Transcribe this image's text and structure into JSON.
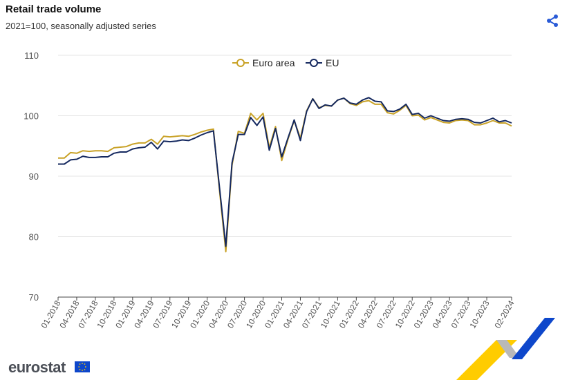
{
  "header": {
    "title": "Retail trade volume",
    "subtitle": "2021=100, seasonally adjusted series"
  },
  "footer": {
    "logo_text": "eurostat"
  },
  "icons": {
    "share": "share-icon",
    "flag": "eu-flag-icon"
  },
  "colors": {
    "euro_area": "#c9a227",
    "eu": "#14285f",
    "share": "#2a5bd7",
    "grid": "#e6e6e6",
    "ribbon_yellow": "#ffcc00",
    "ribbon_blue": "#0e47cb",
    "ribbon_grey": "#b9b9b9"
  },
  "chart_data": {
    "type": "line",
    "title": "Retail trade volume",
    "subtitle": "2021=100, seasonally adjusted series",
    "xlabel": "",
    "ylabel": "",
    "ylim": [
      70,
      110
    ],
    "yticks": [
      70,
      80,
      90,
      100,
      110
    ],
    "grid": true,
    "legend_position": "top-center",
    "x": [
      "01-2018",
      "02-2018",
      "03-2018",
      "04-2018",
      "05-2018",
      "06-2018",
      "07-2018",
      "08-2018",
      "09-2018",
      "10-2018",
      "11-2018",
      "12-2018",
      "01-2019",
      "02-2019",
      "03-2019",
      "04-2019",
      "05-2019",
      "06-2019",
      "07-2019",
      "08-2019",
      "09-2019",
      "10-2019",
      "11-2019",
      "12-2019",
      "01-2020",
      "02-2020",
      "03-2020",
      "04-2020",
      "05-2020",
      "06-2020",
      "07-2020",
      "08-2020",
      "09-2020",
      "10-2020",
      "11-2020",
      "12-2020",
      "01-2021",
      "02-2021",
      "03-2021",
      "04-2021",
      "05-2021",
      "06-2021",
      "07-2021",
      "08-2021",
      "09-2021",
      "10-2021",
      "11-2021",
      "12-2021",
      "01-2022",
      "02-2022",
      "03-2022",
      "04-2022",
      "05-2022",
      "06-2022",
      "07-2022",
      "08-2022",
      "09-2022",
      "10-2022",
      "11-2022",
      "12-2022",
      "01-2023",
      "02-2023",
      "03-2023",
      "04-2023",
      "05-2023",
      "06-2023",
      "07-2023",
      "08-2023",
      "09-2023",
      "10-2023",
      "11-2023",
      "12-2023",
      "01-2024",
      "02-2024"
    ],
    "xtick_labels": [
      "01-2018",
      "04-2018",
      "07-2018",
      "10-2018",
      "01-2019",
      "04-2019",
      "07-2019",
      "10-2019",
      "01-2020",
      "04-2020",
      "07-2020",
      "10-2020",
      "01-2021",
      "04-2021",
      "07-2021",
      "10-2021",
      "01-2022",
      "04-2022",
      "07-2022",
      "10-2022",
      "01-2023",
      "04-2023",
      "07-2023",
      "10-2023",
      "02-2024"
    ],
    "series": [
      {
        "name": "Euro area",
        "values": [
          93.0,
          93.0,
          93.9,
          93.8,
          94.2,
          94.1,
          94.2,
          94.2,
          94.1,
          94.7,
          94.8,
          94.9,
          95.3,
          95.5,
          95.5,
          96.1,
          95.3,
          96.6,
          96.5,
          96.6,
          96.7,
          96.6,
          96.9,
          97.3,
          97.6,
          97.8,
          87.5,
          77.5,
          91.8,
          97.4,
          97.1,
          100.4,
          99.3,
          100.4,
          94.7,
          98.2,
          92.6,
          96.1,
          99.2,
          96.3,
          100.8,
          102.8,
          101.3,
          101.7,
          101.6,
          102.6,
          102.9,
          102.0,
          101.7,
          102.3,
          102.5,
          101.9,
          101.9,
          100.5,
          100.3,
          100.9,
          101.7,
          100.0,
          100.1,
          99.3,
          99.7,
          99.3,
          98.9,
          98.8,
          99.2,
          99.3,
          99.2,
          98.5,
          98.5,
          98.8,
          99.2,
          98.8,
          98.8,
          98.3
        ]
      },
      {
        "name": "EU",
        "values": [
          92.0,
          92.0,
          92.7,
          92.8,
          93.3,
          93.1,
          93.1,
          93.2,
          93.2,
          93.8,
          94.0,
          94.0,
          94.5,
          94.7,
          94.8,
          95.6,
          94.5,
          95.8,
          95.7,
          95.8,
          96.0,
          95.9,
          96.3,
          96.8,
          97.2,
          97.5,
          88.0,
          78.4,
          92.2,
          96.9,
          96.9,
          99.7,
          98.4,
          99.8,
          94.3,
          97.9,
          93.2,
          96.3,
          99.3,
          95.9,
          100.7,
          102.8,
          101.2,
          101.8,
          101.6,
          102.6,
          102.9,
          102.1,
          101.9,
          102.6,
          103.0,
          102.4,
          102.3,
          100.8,
          100.7,
          101.1,
          101.9,
          100.2,
          100.4,
          99.6,
          100.0,
          99.6,
          99.2,
          99.1,
          99.4,
          99.5,
          99.4,
          98.9,
          98.8,
          99.2,
          99.6,
          99.0,
          99.2,
          98.8
        ]
      }
    ]
  }
}
